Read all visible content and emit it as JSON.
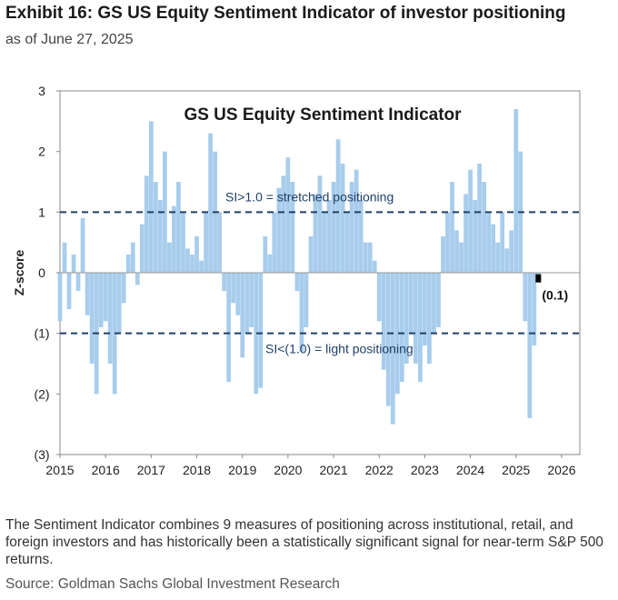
{
  "header": {
    "title": "Exhibit 16: GS US Equity Sentiment Indicator of investor positioning",
    "subtitle": "as of June 27, 2025"
  },
  "footer": {
    "caption": "The Sentiment Indicator combines 9 measures of positioning across institutional, retail, and foreign investors and has historically been a statistically significant signal for near-term S&P 500 returns.",
    "source": "Source: Goldman Sachs Global Investment Research"
  },
  "chart_data": {
    "type": "bar",
    "title": "GS US Equity  Sentiment Indicator",
    "ylabel": "Z-score",
    "xlabel": "",
    "xlim": [
      2015,
      2026.4
    ],
    "ylim": [
      -3,
      3
    ],
    "x_ticks": [
      "2015",
      "2016",
      "2017",
      "2018",
      "2019",
      "2020",
      "2021",
      "2022",
      "2023",
      "2024",
      "2025",
      "2026"
    ],
    "y_ticks": [
      "3",
      "2",
      "1",
      "0",
      "(1)",
      "(2)",
      "(3)"
    ],
    "colors": {
      "bars": "#a8cdec",
      "reference_lines": "#1f3f66",
      "latest_marker": "#000000"
    },
    "reference_lines": [
      {
        "value": 1.0,
        "label": "SI>1.0 = stretched positioning"
      },
      {
        "value": -1.0,
        "label": "SI<(1.0) = light positioning"
      }
    ],
    "latest": {
      "x": 2025.49,
      "value": -0.1,
      "label": "(0.1)"
    },
    "series": [
      {
        "x": [
          2015.0,
          2015.1,
          2015.2,
          2015.3,
          2015.4,
          2015.5,
          2015.6,
          2015.7,
          2015.8,
          2015.9,
          2016.0,
          2016.1,
          2016.2,
          2016.3,
          2016.4,
          2016.5,
          2016.6,
          2016.7,
          2016.8,
          2016.9,
          2017.0,
          2017.1,
          2017.2,
          2017.3,
          2017.4,
          2017.5,
          2017.6,
          2017.7,
          2017.8,
          2017.9,
          2018.0,
          2018.1,
          2018.2,
          2018.3,
          2018.4,
          2018.5,
          2018.6,
          2018.7,
          2018.8,
          2018.9,
          2019.0,
          2019.1,
          2019.2,
          2019.3,
          2019.4,
          2019.5,
          2019.6,
          2019.7,
          2019.8,
          2019.9,
          2020.0,
          2020.1,
          2020.2,
          2020.3,
          2020.4,
          2020.5,
          2020.6,
          2020.7,
          2020.8,
          2020.9,
          2021.0,
          2021.1,
          2021.2,
          2021.3,
          2021.4,
          2021.5,
          2021.6,
          2021.7,
          2021.8,
          2021.9,
          2022.0,
          2022.1,
          2022.2,
          2022.3,
          2022.4,
          2022.5,
          2022.6,
          2022.7,
          2022.8,
          2022.9,
          2023.0,
          2023.1,
          2023.2,
          2023.3,
          2023.4,
          2023.5,
          2023.6,
          2023.7,
          2023.8,
          2023.9,
          2024.0,
          2024.1,
          2024.2,
          2024.3,
          2024.4,
          2024.5,
          2024.6,
          2024.7,
          2024.8,
          2024.9,
          2025.0,
          2025.1,
          2025.2,
          2025.3,
          2025.4,
          2025.49
        ],
        "values": [
          -0.8,
          0.5,
          -0.6,
          0.3,
          -0.3,
          0.9,
          -0.7,
          -1.5,
          -2.0,
          -0.9,
          -0.8,
          -1.5,
          -2.0,
          -1.0,
          -0.5,
          0.3,
          0.5,
          -0.2,
          0.8,
          1.6,
          2.5,
          1.5,
          1.2,
          2.0,
          0.5,
          1.1,
          1.5,
          1.0,
          0.4,
          0.3,
          0.6,
          0.2,
          1.0,
          2.3,
          2.0,
          1.0,
          -0.3,
          -1.8,
          -0.5,
          -0.7,
          -1.4,
          -1.0,
          -0.9,
          -2.0,
          -1.9,
          0.6,
          0.3,
          1.0,
          1.4,
          1.6,
          1.9,
          1.5,
          -0.3,
          -1.3,
          -0.9,
          0.6,
          1.3,
          1.6,
          1.0,
          1.2,
          1.5,
          2.2,
          1.8,
          1.0,
          1.5,
          1.7,
          1.2,
          0.5,
          0.5,
          0.2,
          -0.8,
          -1.6,
          -2.2,
          -2.5,
          -2.0,
          -1.8,
          -1.5,
          -1.0,
          -1.5,
          -1.8,
          -1.2,
          -1.5,
          -1.0,
          -0.9,
          0.6,
          1.0,
          1.5,
          0.7,
          0.5,
          1.3,
          1.7,
          1.2,
          1.8,
          1.5,
          1.0,
          0.8,
          0.5,
          1.0,
          0.4,
          0.7,
          2.7,
          2.0,
          -0.8,
          -2.4,
          -1.2,
          -0.1
        ]
      }
    ]
  }
}
